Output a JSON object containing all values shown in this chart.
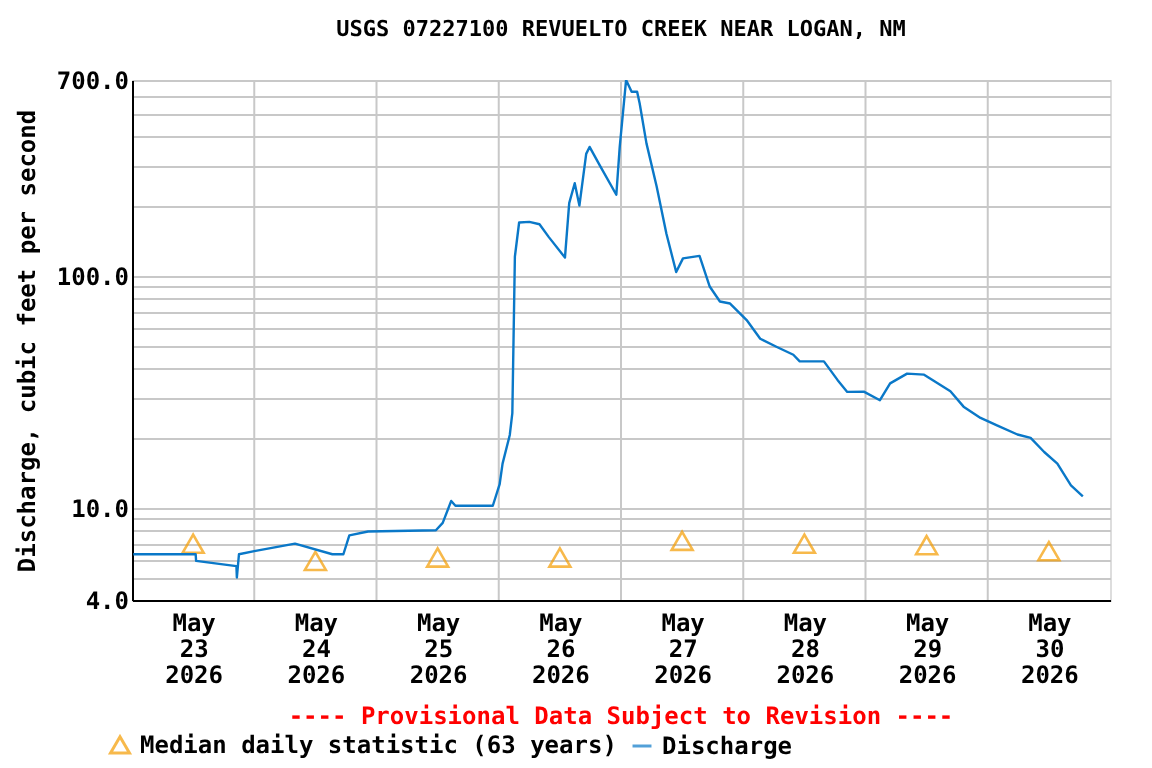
{
  "chart_data": {
    "type": "line",
    "title": "USGS 07227100 REVUELTO CREEK NEAR LOGAN, NM",
    "ylabel": "Discharge, cubic feet per second",
    "annotations": [
      "---- Provisional Data Subject to Revision ----"
    ],
    "xlim": [
      "2026-05-23T00:00",
      "2026-05-31T00:00"
    ],
    "xticks": [
      {
        "value": "2026-05-23T12:00",
        "label": "May\n23\n2026"
      },
      {
        "value": "2026-05-24T12:00",
        "label": "May\n24\n2026"
      },
      {
        "value": "2026-05-25T12:00",
        "label": "May\n25\n2026"
      },
      {
        "value": "2026-05-26T12:00",
        "label": "May\n26\n2026"
      },
      {
        "value": "2026-05-27T12:00",
        "label": "May\n27\n2026"
      },
      {
        "value": "2026-05-28T12:00",
        "label": "May\n28\n2026"
      },
      {
        "value": "2026-05-29T12:00",
        "label": "May\n29\n2026"
      },
      {
        "value": "2026-05-30T12:00",
        "label": "May\n30\n2026"
      },
      {
        "value": "2026-05-24T00:00",
        "label": null
      },
      {
        "value": "2026-05-25T00:00",
        "label": null
      },
      {
        "value": "2026-05-26T00:00",
        "label": null
      },
      {
        "value": "2026-05-27T00:00",
        "label": null
      },
      {
        "value": "2026-05-28T00:00",
        "label": null
      },
      {
        "value": "2026-05-29T00:00",
        "label": null
      },
      {
        "value": "2026-05-30T00:00",
        "label": null
      }
    ],
    "ylim": [
      4,
      700
    ],
    "log": true,
    "yticks": [
      {
        "value": 4,
        "label": "4.0"
      },
      {
        "value": 5,
        "label": null
      },
      {
        "value": 6,
        "label": null
      },
      {
        "value": 7,
        "label": null
      },
      {
        "value": 8,
        "label": null
      },
      {
        "value": 9,
        "label": null
      },
      {
        "value": 10,
        "label": "10.0"
      },
      {
        "value": 20,
        "label": null
      },
      {
        "value": 30,
        "label": null
      },
      {
        "value": 40,
        "label": null
      },
      {
        "value": 50,
        "label": null
      },
      {
        "value": 60,
        "label": null
      },
      {
        "value": 70,
        "label": null
      },
      {
        "value": 80,
        "label": null
      },
      {
        "value": 90,
        "label": null
      },
      {
        "value": 100,
        "label": "100.0"
      },
      {
        "value": 200,
        "label": null
      },
      {
        "value": 300,
        "label": null
      },
      {
        "value": 400,
        "label": null
      },
      {
        "value": 500,
        "label": null
      },
      {
        "value": 600,
        "label": null
      },
      {
        "value": 700,
        "label": "700.0"
      }
    ],
    "grid": true,
    "legend": "bottom",
    "series": [
      {
        "name": "Median daily statistic (63 years)",
        "type": "scatter",
        "marker": "triangle",
        "color": "#f59c00",
        "x": [
          "2026-05-23T12:00",
          "2026-05-24T12:00",
          "2026-05-25T12:00",
          "2026-05-26T12:00",
          "2026-05-27T12:00",
          "2026-05-28T12:00",
          "2026-05-29T12:00",
          "2026-05-30T12:00"
        ],
        "values": [
          7.0,
          5.9,
          6.1,
          6.1,
          7.2,
          7.0,
          6.9,
          6.5
        ]
      },
      {
        "name": "Discharge",
        "color": "#0a78c8",
        "x": [
          "2026-05-23T00:15",
          "2026-05-23T12:30",
          "2026-05-23T12:35",
          "2026-05-23T20:30",
          "2026-05-23T20:35",
          "2026-05-23T21:00",
          "2026-05-24T00:00",
          "2026-05-24T08:00",
          "2026-05-24T15:20",
          "2026-05-24T17:30",
          "2026-05-24T18:40",
          "2026-05-24T22:20",
          "2026-05-25T11:40",
          "2026-05-25T13:00",
          "2026-05-25T14:40",
          "2026-05-25T15:30",
          "2026-05-25T22:50",
          "2026-05-26T00:10",
          "2026-05-26T00:45",
          "2026-05-26T02:10",
          "2026-05-26T02:40",
          "2026-05-26T03:10",
          "2026-05-26T04:00",
          "2026-05-26T06:00",
          "2026-05-26T08:00",
          "2026-05-26T09:50",
          "2026-05-26T13:00",
          "2026-05-26T13:50",
          "2026-05-26T14:55",
          "2026-05-26T15:50",
          "2026-05-26T17:10",
          "2026-05-26T17:50",
          "2026-05-26T19:50",
          "2026-05-26T23:05",
          "2026-05-26T23:45",
          "2026-05-27T01:00",
          "2026-05-27T02:05",
          "2026-05-27T03:10",
          "2026-05-27T03:40",
          "2026-05-27T05:00",
          "2026-05-27T07:00",
          "2026-05-27T08:55",
          "2026-05-27T10:50",
          "2026-05-27T12:10",
          "2026-05-27T15:25",
          "2026-05-27T17:25",
          "2026-05-27T19:25",
          "2026-05-27T21:25",
          "2026-05-28T00:40",
          "2026-05-28T03:20",
          "2026-05-28T06:30",
          "2026-05-28T09:50",
          "2026-05-28T11:05",
          "2026-05-28T15:50",
          "2026-05-28T18:30",
          "2026-05-28T20:25",
          "2026-05-28T23:40",
          "2026-05-29T02:50",
          "2026-05-29T04:50",
          "2026-05-29T08:10",
          "2026-05-29T11:30",
          "2026-05-29T14:10",
          "2026-05-29T16:40",
          "2026-05-29T19:15",
          "2026-05-29T22:35",
          "2026-05-30T01:55",
          "2026-05-30T05:50",
          "2026-05-30T08:25",
          "2026-05-30T11:05",
          "2026-05-30T13:40",
          "2026-05-30T16:20",
          "2026-05-30T18:40"
        ],
        "values": [
          6.3,
          6.3,
          5.9,
          5.6,
          5.0,
          6.3,
          6.5,
          7.0,
          6.3,
          6.3,
          7.6,
          7.9,
          8.0,
          8.6,
          10.7,
          10.2,
          10.2,
          12.6,
          15.5,
          20.6,
          25.6,
          121,
          170,
          171,
          167,
          147,
          120,
          206,
          251,
          201,
          336,
          360,
          300,
          224,
          360,
          700,
          623,
          623,
          554,
          373,
          243,
          152,
          104,
          119,
          122,
          90,
          77.6,
          76,
          64.5,
          53.6,
          49.5,
          45.7,
          42.8,
          42.8,
          35.6,
          31.6,
          31.7,
          29.1,
          34.4,
          37.9,
          37.5,
          34.4,
          31.8,
          27.3,
          24.4,
          22.6,
          20.7,
          20.0,
          17.4,
          15.5,
          12.5,
          11.2
        ]
      }
    ]
  }
}
